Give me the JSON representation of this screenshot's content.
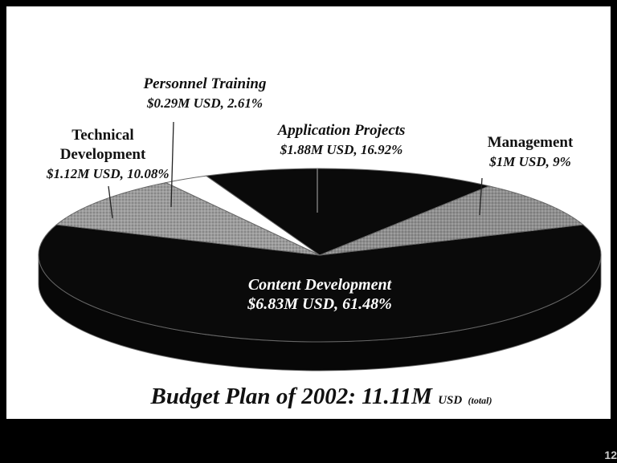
{
  "chart_data": {
    "type": "pie",
    "title": "Budget Plan of 2002: 11.11M",
    "title_unit": "USD",
    "title_note": "(total)",
    "categories": [
      "Content Development",
      "Technical Development",
      "Personnel Training",
      "Application Projects",
      "Management"
    ],
    "values": [
      61.48,
      10.08,
      2.61,
      16.92,
      9
    ],
    "value_labels": [
      "$6.83M USD, 61.48%",
      "$1.12M USD, 10.08%",
      "$0.29M USD, 2.61%",
      "$1.88M USD, 16.92%",
      "$1M USD, 9%"
    ],
    "colors": [
      "#0a0a0a",
      "#9c9c9c",
      "#ffffff",
      "#0a0a0a",
      "#8e8e8e"
    ],
    "page_number": "12"
  }
}
